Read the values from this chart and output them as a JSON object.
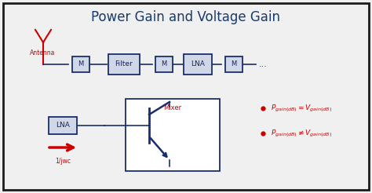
{
  "title": "Power Gain and Voltage Gain",
  "title_color": "#1a3a6b",
  "title_fontsize": 12,
  "bg_color": "#f0f0f0",
  "border_color": "#1a1a1a",
  "box_fill": "#d0d8e8",
  "box_edge": "#1a2e6b",
  "antenna_color": "#cc0000",
  "signal_color": "#1a2e6b",
  "red_color": "#cc0000",
  "mixer_label": "Mixer",
  "freq_label": "1/jwc",
  "antenna_label": "Antenna"
}
